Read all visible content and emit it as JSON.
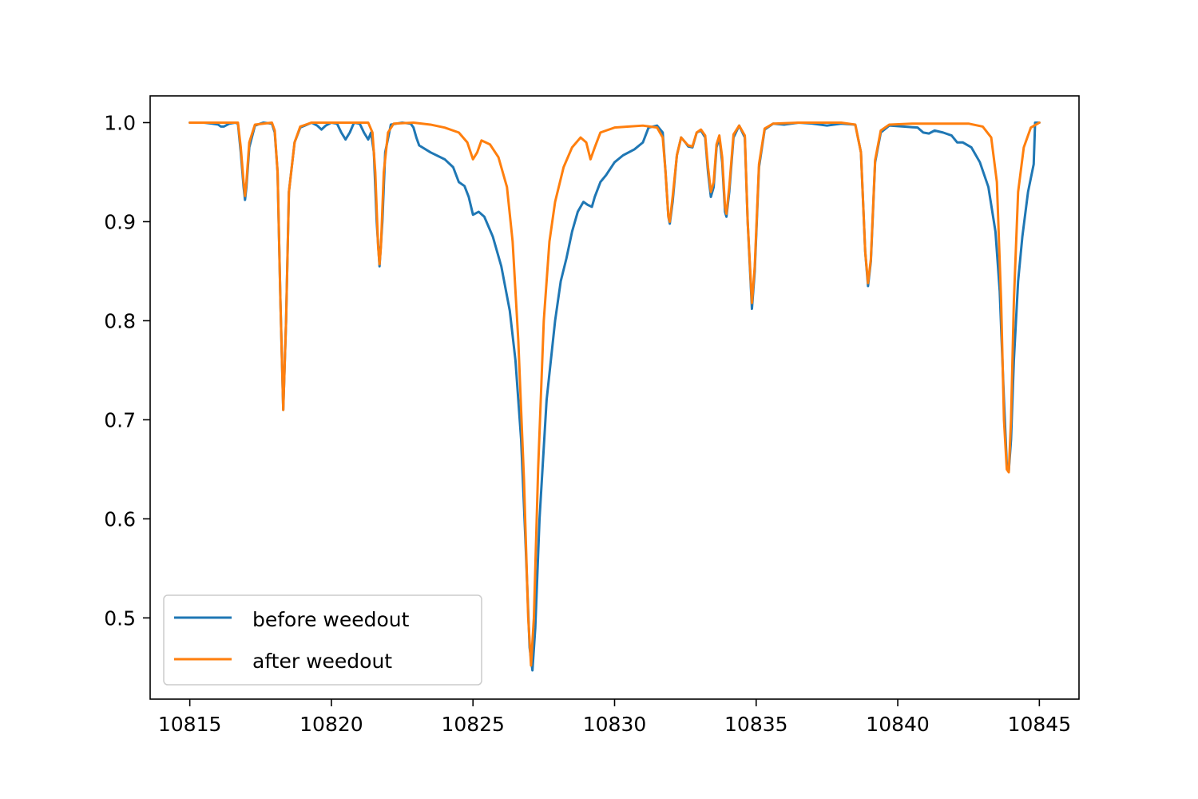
{
  "chart_data": {
    "type": "line",
    "title": "",
    "xlabel": "",
    "ylabel": "",
    "xlim": [
      10813.6,
      10846.4
    ],
    "ylim": [
      0.418,
      1.027
    ],
    "x_ticks": [
      10815,
      10820,
      10825,
      10830,
      10835,
      10840,
      10845
    ],
    "x_tick_labels": [
      "10815",
      "10820",
      "10825",
      "10830",
      "10835",
      "10840",
      "10845"
    ],
    "y_ticks": [
      0.5,
      0.6,
      0.7,
      0.8,
      0.9,
      1.0
    ],
    "y_tick_labels": [
      "0.5",
      "0.6",
      "0.7",
      "0.8",
      "0.9",
      "1.0"
    ],
    "grid": false,
    "legend": {
      "placement": "lower-left"
    },
    "series": [
      {
        "name": "before weedout",
        "color": "#1f77b4",
        "points": [
          [
            10815.0,
            1.0
          ],
          [
            10815.5,
            1.0
          ],
          [
            10815.8,
            0.999
          ],
          [
            10816.0,
            0.998
          ],
          [
            10816.1,
            0.996
          ],
          [
            10816.2,
            0.996
          ],
          [
            10816.4,
            0.999
          ],
          [
            10816.6,
            1.0
          ],
          [
            10816.7,
            0.999
          ],
          [
            10816.8,
            0.97
          ],
          [
            10816.9,
            0.935
          ],
          [
            10816.95,
            0.922
          ],
          [
            10817.0,
            0.935
          ],
          [
            10817.1,
            0.975
          ],
          [
            10817.3,
            0.997
          ],
          [
            10817.6,
            1.0
          ],
          [
            10817.9,
            0.999
          ],
          [
            10818.0,
            0.99
          ],
          [
            10818.1,
            0.95
          ],
          [
            10818.2,
            0.82
          ],
          [
            10818.3,
            0.71
          ],
          [
            10818.4,
            0.8
          ],
          [
            10818.5,
            0.93
          ],
          [
            10818.7,
            0.98
          ],
          [
            10818.9,
            0.995
          ],
          [
            10819.3,
            1.0
          ],
          [
            10819.5,
            0.997
          ],
          [
            10819.65,
            0.993
          ],
          [
            10819.8,
            0.997
          ],
          [
            10820.0,
            1.0
          ],
          [
            10820.2,
            0.999
          ],
          [
            10820.35,
            0.99
          ],
          [
            10820.5,
            0.983
          ],
          [
            10820.65,
            0.99
          ],
          [
            10820.8,
            1.0
          ],
          [
            10821.0,
            0.999
          ],
          [
            10821.15,
            0.99
          ],
          [
            10821.3,
            0.983
          ],
          [
            10821.4,
            0.99
          ],
          [
            10821.5,
            0.97
          ],
          [
            10821.6,
            0.9
          ],
          [
            10821.7,
            0.855
          ],
          [
            10821.8,
            0.9
          ],
          [
            10821.9,
            0.97
          ],
          [
            10822.1,
            0.998
          ],
          [
            10822.5,
            1.0
          ],
          [
            10822.8,
            0.999
          ],
          [
            10822.9,
            0.995
          ],
          [
            10823.0,
            0.985
          ],
          [
            10823.1,
            0.977
          ],
          [
            10823.5,
            0.97
          ],
          [
            10824.0,
            0.963
          ],
          [
            10824.3,
            0.955
          ],
          [
            10824.5,
            0.94
          ],
          [
            10824.7,
            0.936
          ],
          [
            10824.85,
            0.925
          ],
          [
            10825.0,
            0.907
          ],
          [
            10825.2,
            0.91
          ],
          [
            10825.4,
            0.905
          ],
          [
            10825.7,
            0.885
          ],
          [
            10826.0,
            0.855
          ],
          [
            10826.3,
            0.81
          ],
          [
            10826.5,
            0.76
          ],
          [
            10826.7,
            0.68
          ],
          [
            10826.85,
            0.58
          ],
          [
            10827.0,
            0.47
          ],
          [
            10827.1,
            0.447
          ],
          [
            10827.2,
            0.49
          ],
          [
            10827.35,
            0.6
          ],
          [
            10827.6,
            0.72
          ],
          [
            10827.9,
            0.8
          ],
          [
            10828.1,
            0.84
          ],
          [
            10828.3,
            0.863
          ],
          [
            10828.5,
            0.89
          ],
          [
            10828.7,
            0.91
          ],
          [
            10828.9,
            0.92
          ],
          [
            10829.05,
            0.917
          ],
          [
            10829.2,
            0.915
          ],
          [
            10829.3,
            0.925
          ],
          [
            10829.5,
            0.94
          ],
          [
            10829.7,
            0.947
          ],
          [
            10830.0,
            0.96
          ],
          [
            10830.3,
            0.967
          ],
          [
            10830.7,
            0.973
          ],
          [
            10831.0,
            0.98
          ],
          [
            10831.2,
            0.995
          ],
          [
            10831.5,
            0.997
          ],
          [
            10831.7,
            0.99
          ],
          [
            10831.8,
            0.95
          ],
          [
            10831.9,
            0.905
          ],
          [
            10831.95,
            0.898
          ],
          [
            10832.05,
            0.92
          ],
          [
            10832.2,
            0.967
          ],
          [
            10832.35,
            0.985
          ],
          [
            10832.5,
            0.98
          ],
          [
            10832.6,
            0.976
          ],
          [
            10832.75,
            0.975
          ],
          [
            10832.9,
            0.99
          ],
          [
            10833.05,
            0.992
          ],
          [
            10833.2,
            0.985
          ],
          [
            10833.3,
            0.95
          ],
          [
            10833.4,
            0.925
          ],
          [
            10833.5,
            0.935
          ],
          [
            10833.6,
            0.975
          ],
          [
            10833.7,
            0.985
          ],
          [
            10833.8,
            0.96
          ],
          [
            10833.9,
            0.91
          ],
          [
            10833.95,
            0.905
          ],
          [
            10834.05,
            0.93
          ],
          [
            10834.2,
            0.985
          ],
          [
            10834.4,
            0.997
          ],
          [
            10834.6,
            0.985
          ],
          [
            10834.7,
            0.9
          ],
          [
            10834.85,
            0.812
          ],
          [
            10834.95,
            0.85
          ],
          [
            10835.1,
            0.955
          ],
          [
            10835.3,
            0.993
          ],
          [
            10835.6,
            0.999
          ],
          [
            10836.0,
            0.998
          ],
          [
            10836.5,
            1.0
          ],
          [
            10837.0,
            0.999
          ],
          [
            10837.5,
            0.997
          ],
          [
            10838.0,
            0.999
          ],
          [
            10838.5,
            0.998
          ],
          [
            10838.7,
            0.97
          ],
          [
            10838.85,
            0.87
          ],
          [
            10838.95,
            0.835
          ],
          [
            10839.05,
            0.86
          ],
          [
            10839.2,
            0.96
          ],
          [
            10839.4,
            0.99
          ],
          [
            10839.7,
            0.997
          ],
          [
            10840.2,
            0.996
          ],
          [
            10840.7,
            0.995
          ],
          [
            10840.9,
            0.99
          ],
          [
            10841.1,
            0.989
          ],
          [
            10841.3,
            0.992
          ],
          [
            10841.6,
            0.99
          ],
          [
            10841.9,
            0.987
          ],
          [
            10842.1,
            0.98
          ],
          [
            10842.3,
            0.98
          ],
          [
            10842.6,
            0.975
          ],
          [
            10842.9,
            0.96
          ],
          [
            10843.2,
            0.935
          ],
          [
            10843.45,
            0.89
          ],
          [
            10843.6,
            0.83
          ],
          [
            10843.75,
            0.72
          ],
          [
            10843.85,
            0.655
          ],
          [
            10843.92,
            0.648
          ],
          [
            10844.0,
            0.68
          ],
          [
            10844.1,
            0.76
          ],
          [
            10844.25,
            0.84
          ],
          [
            10844.4,
            0.885
          ],
          [
            10844.6,
            0.93
          ],
          [
            10844.8,
            0.958
          ],
          [
            10844.85,
            1.0
          ],
          [
            10845.0,
            1.0
          ]
        ]
      },
      {
        "name": "after weedout",
        "color": "#ff7f0e",
        "points": [
          [
            10815.0,
            1.0
          ],
          [
            10816.7,
            1.0
          ],
          [
            10816.8,
            0.975
          ],
          [
            10816.9,
            0.94
          ],
          [
            10816.95,
            0.926
          ],
          [
            10817.0,
            0.94
          ],
          [
            10817.1,
            0.98
          ],
          [
            10817.3,
            0.998
          ],
          [
            10817.9,
            1.0
          ],
          [
            10818.0,
            0.992
          ],
          [
            10818.1,
            0.95
          ],
          [
            10818.2,
            0.82
          ],
          [
            10818.3,
            0.71
          ],
          [
            10818.4,
            0.8
          ],
          [
            10818.5,
            0.93
          ],
          [
            10818.7,
            0.98
          ],
          [
            10818.9,
            0.996
          ],
          [
            10819.3,
            1.0
          ],
          [
            10821.3,
            1.0
          ],
          [
            10821.45,
            0.99
          ],
          [
            10821.55,
            0.95
          ],
          [
            10821.65,
            0.875
          ],
          [
            10821.7,
            0.857
          ],
          [
            10821.75,
            0.875
          ],
          [
            10821.85,
            0.95
          ],
          [
            10822.0,
            0.99
          ],
          [
            10822.2,
            0.999
          ],
          [
            10822.9,
            1.0
          ],
          [
            10823.5,
            0.998
          ],
          [
            10824.0,
            0.995
          ],
          [
            10824.5,
            0.99
          ],
          [
            10824.8,
            0.98
          ],
          [
            10825.0,
            0.963
          ],
          [
            10825.15,
            0.97
          ],
          [
            10825.3,
            0.982
          ],
          [
            10825.6,
            0.978
          ],
          [
            10825.9,
            0.965
          ],
          [
            10826.2,
            0.935
          ],
          [
            10826.4,
            0.88
          ],
          [
            10826.6,
            0.78
          ],
          [
            10826.8,
            0.64
          ],
          [
            10826.95,
            0.5
          ],
          [
            10827.05,
            0.452
          ],
          [
            10827.15,
            0.5
          ],
          [
            10827.3,
            0.65
          ],
          [
            10827.5,
            0.8
          ],
          [
            10827.7,
            0.88
          ],
          [
            10827.9,
            0.92
          ],
          [
            10828.2,
            0.955
          ],
          [
            10828.5,
            0.975
          ],
          [
            10828.8,
            0.985
          ],
          [
            10829.0,
            0.98
          ],
          [
            10829.15,
            0.963
          ],
          [
            10829.3,
            0.975
          ],
          [
            10829.5,
            0.99
          ],
          [
            10830.0,
            0.995
          ],
          [
            10830.5,
            0.996
          ],
          [
            10831.0,
            0.997
          ],
          [
            10831.5,
            0.995
          ],
          [
            10831.7,
            0.985
          ],
          [
            10831.8,
            0.95
          ],
          [
            10831.9,
            0.905
          ],
          [
            10831.95,
            0.9
          ],
          [
            10832.05,
            0.925
          ],
          [
            10832.2,
            0.967
          ],
          [
            10832.35,
            0.985
          ],
          [
            10832.5,
            0.98
          ],
          [
            10832.6,
            0.977
          ],
          [
            10832.75,
            0.976
          ],
          [
            10832.9,
            0.99
          ],
          [
            10833.05,
            0.993
          ],
          [
            10833.2,
            0.987
          ],
          [
            10833.3,
            0.955
          ],
          [
            10833.4,
            0.93
          ],
          [
            10833.5,
            0.94
          ],
          [
            10833.6,
            0.978
          ],
          [
            10833.7,
            0.987
          ],
          [
            10833.8,
            0.965
          ],
          [
            10833.9,
            0.915
          ],
          [
            10833.95,
            0.908
          ],
          [
            10834.05,
            0.935
          ],
          [
            10834.2,
            0.988
          ],
          [
            10834.4,
            0.997
          ],
          [
            10834.6,
            0.987
          ],
          [
            10834.7,
            0.9
          ],
          [
            10834.85,
            0.818
          ],
          [
            10834.95,
            0.855
          ],
          [
            10835.1,
            0.958
          ],
          [
            10835.3,
            0.994
          ],
          [
            10835.6,
            0.999
          ],
          [
            10836.5,
            1.0
          ],
          [
            10838.0,
            1.0
          ],
          [
            10838.5,
            0.998
          ],
          [
            10838.7,
            0.97
          ],
          [
            10838.85,
            0.87
          ],
          [
            10838.95,
            0.838
          ],
          [
            10839.05,
            0.862
          ],
          [
            10839.2,
            0.962
          ],
          [
            10839.4,
            0.992
          ],
          [
            10839.7,
            0.998
          ],
          [
            10840.5,
            0.999
          ],
          [
            10842.5,
            0.999
          ],
          [
            10843.0,
            0.996
          ],
          [
            10843.3,
            0.985
          ],
          [
            10843.5,
            0.94
          ],
          [
            10843.65,
            0.82
          ],
          [
            10843.75,
            0.7
          ],
          [
            10843.85,
            0.65
          ],
          [
            10843.92,
            0.647
          ],
          [
            10844.0,
            0.7
          ],
          [
            10844.1,
            0.82
          ],
          [
            10844.25,
            0.93
          ],
          [
            10844.45,
            0.975
          ],
          [
            10844.7,
            0.995
          ],
          [
            10845.0,
            1.0
          ]
        ]
      }
    ]
  }
}
